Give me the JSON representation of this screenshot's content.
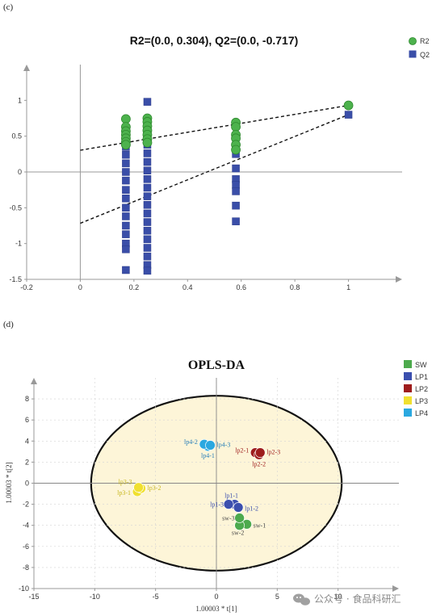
{
  "chart_data": [
    {
      "type": "scatter",
      "panel_label": "(c)",
      "title": "R2=(0.0, 0.304), Q2=(0.0, -0.717)",
      "xlim": [
        -0.2,
        1.2
      ],
      "ylim": [
        -1.5,
        1.5
      ],
      "x_ticks": [
        -0.2,
        0,
        0.2,
        0.4,
        0.6,
        0.8,
        1
      ],
      "y_ticks": [
        -1.5,
        -1,
        -0.5,
        0,
        0.5,
        1
      ],
      "x_tick_labels": [
        "-0.2",
        "0",
        "0.2",
        "0.4",
        "0.6",
        "0.8",
        "1"
      ],
      "y_tick_labels": [
        "-1.5",
        "-1",
        "-0.5",
        "0",
        "0.5",
        "1"
      ],
      "legend_position": "top-right",
      "series": [
        {
          "name": "R2",
          "marker": "circle",
          "color": "#4db24d",
          "points": [
            [
              0.17,
              0.74
            ],
            [
              0.17,
              0.63
            ],
            [
              0.17,
              0.57
            ],
            [
              0.17,
              0.52
            ],
            [
              0.17,
              0.47
            ],
            [
              0.17,
              0.42
            ],
            [
              0.17,
              0.38
            ],
            [
              0.25,
              0.75
            ],
            [
              0.25,
              0.7
            ],
            [
              0.25,
              0.64
            ],
            [
              0.25,
              0.58
            ],
            [
              0.25,
              0.52
            ],
            [
              0.25,
              0.46
            ],
            [
              0.25,
              0.41
            ],
            [
              0.58,
              0.69
            ],
            [
              0.58,
              0.63
            ],
            [
              0.58,
              0.52
            ],
            [
              0.58,
              0.47
            ],
            [
              0.58,
              0.38
            ],
            [
              0.58,
              0.31
            ],
            [
              1.0,
              0.93
            ]
          ],
          "regression_line": {
            "intercept": 0.304,
            "slope": 0.626
          }
        },
        {
          "name": "Q2",
          "marker": "square",
          "color": "#3a4ea8",
          "points": [
            [
              0.17,
              0.35
            ],
            [
              0.17,
              0.24
            ],
            [
              0.17,
              0.12
            ],
            [
              0.17,
              0.0
            ],
            [
              0.17,
              -0.12
            ],
            [
              0.17,
              -0.25
            ],
            [
              0.17,
              -0.37
            ],
            [
              0.17,
              -0.5
            ],
            [
              0.17,
              -0.62
            ],
            [
              0.17,
              -0.75
            ],
            [
              0.17,
              -0.87
            ],
            [
              0.17,
              -1.0
            ],
            [
              0.17,
              -1.08
            ],
            [
              0.17,
              -1.37
            ],
            [
              0.25,
              0.98
            ],
            [
              0.25,
              0.38
            ],
            [
              0.25,
              0.26
            ],
            [
              0.25,
              0.14
            ],
            [
              0.25,
              0.02
            ],
            [
              0.25,
              -0.1
            ],
            [
              0.25,
              -0.22
            ],
            [
              0.25,
              -0.34
            ],
            [
              0.25,
              -0.46
            ],
            [
              0.25,
              -0.58
            ],
            [
              0.25,
              -0.7
            ],
            [
              0.25,
              -0.82
            ],
            [
              0.25,
              -0.94
            ],
            [
              0.25,
              -1.06
            ],
            [
              0.25,
              -1.18
            ],
            [
              0.25,
              -1.3
            ],
            [
              0.25,
              -1.38
            ],
            [
              0.58,
              0.25
            ],
            [
              0.58,
              0.05
            ],
            [
              0.58,
              -0.1
            ],
            [
              0.58,
              -0.18
            ],
            [
              0.58,
              -0.27
            ],
            [
              0.58,
              -0.47
            ],
            [
              0.58,
              -0.69
            ],
            [
              1.0,
              0.8
            ]
          ],
          "regression_line": {
            "intercept": -0.717,
            "slope": 1.517
          }
        }
      ]
    },
    {
      "type": "scatter",
      "panel_label": "(d)",
      "title": "OPLS-DA",
      "xlabel": "1.00003 * t[1]",
      "ylabel": "1.00003 * t[2]",
      "xlim": [
        -15,
        15
      ],
      "ylim": [
        -10,
        10
      ],
      "x_ticks": [
        -15,
        -10,
        -5,
        0,
        5,
        10
      ],
      "y_ticks": [
        -10,
        -8,
        -6,
        -4,
        -2,
        0,
        2,
        4,
        6,
        8
      ],
      "x_tick_labels": [
        "-15",
        "-10",
        "-5",
        "0",
        "5",
        "10"
      ],
      "y_tick_labels": [
        "-10",
        "-8",
        "-6",
        "-4",
        "-2",
        "0",
        "2",
        "4",
        "6",
        "8"
      ],
      "legend_position": "top-right",
      "ellipse": {
        "cx": 0,
        "cy": 0,
        "rx": 10.3,
        "ry": 8.3
      },
      "groups": [
        {
          "name": "SW",
          "color": "#4daa4d",
          "label_color": "#4a4a4a",
          "points": [
            {
              "label": "sw-1",
              "x": 2.5,
              "y": -3.9
            },
            {
              "label": "sw-2",
              "x": 1.9,
              "y": -4.0
            },
            {
              "label": "sw-3",
              "x": 1.9,
              "y": -3.3
            }
          ]
        },
        {
          "name": "LP1",
          "color": "#3b4fae",
          "label_color": "#3b4fae",
          "points": [
            {
              "label": "lp1-1",
              "x": 1.5,
              "y": -2.0
            },
            {
              "label": "lp1-2",
              "x": 1.8,
              "y": -2.3
            },
            {
              "label": "lp1-3",
              "x": 1.0,
              "y": -2.0
            }
          ]
        },
        {
          "name": "LP2",
          "color": "#9e1c1c",
          "label_color": "#9e1c1c",
          "points": [
            {
              "label": "lp2-1",
              "x": 3.2,
              "y": 2.9
            },
            {
              "label": "lp2-2",
              "x": 3.5,
              "y": 2.7
            },
            {
              "label": "lp2-3",
              "x": 3.6,
              "y": 2.9
            }
          ]
        },
        {
          "name": "LP3",
          "color": "#f0e030",
          "label_color": "#c8b820",
          "points": [
            {
              "label": "lp3-1",
              "x": -6.5,
              "y": -0.8
            },
            {
              "label": "lp3-2",
              "x": -6.2,
              "y": -0.5
            },
            {
              "label": "lp3-3",
              "x": -6.4,
              "y": -0.4
            }
          ]
        },
        {
          "name": "LP4",
          "color": "#2aa8e0",
          "label_color": "#2a7fb8",
          "points": [
            {
              "label": "lp4-1",
              "x": -0.7,
              "y": 3.5
            },
            {
              "label": "lp4-2",
              "x": -1.0,
              "y": 3.7
            },
            {
              "label": "lp4-3",
              "x": -0.5,
              "y": 3.6
            }
          ]
        }
      ]
    }
  ],
  "watermark": {
    "text": "公众号 · 食品科研汇",
    "icon": "wechat-icon"
  }
}
